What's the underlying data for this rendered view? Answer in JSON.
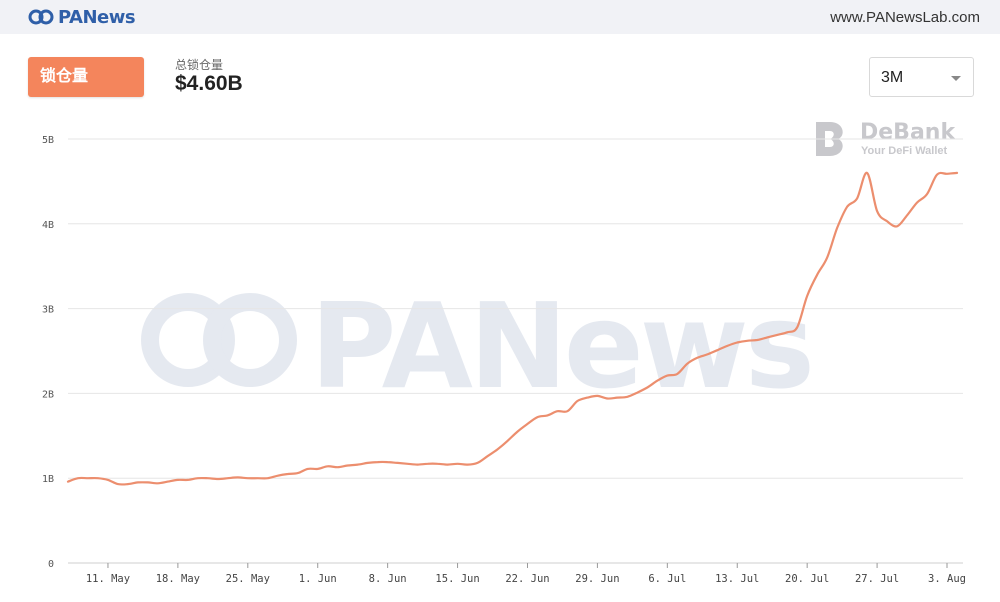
{
  "header": {
    "logo_text": "PANews",
    "site_url": "www.PANewsLab.com"
  },
  "metric": {
    "tab_label": "锁仓量",
    "summary_label": "总锁仓量",
    "summary_value": "$4.60B"
  },
  "range_select": {
    "selected": "3M"
  },
  "debank_logo": {
    "name": "DeBank",
    "tagline": "Your DeFi Wallet"
  },
  "watermark_text": "PANews",
  "colors": {
    "accent": "#f4855c",
    "line": "#ec8e6e",
    "grid": "#e6e6e6",
    "topbar": "#f1f2f6"
  },
  "chart_data": {
    "type": "line",
    "title": "",
    "xlabel": "",
    "ylabel": "",
    "ylim": [
      0,
      5
    ],
    "y_ticks": [
      "0",
      "1B",
      "2B",
      "3B",
      "4B",
      "5B"
    ],
    "x_ticks": [
      "11. May",
      "18. May",
      "25. May",
      "1. Jun",
      "8. Jun",
      "15. Jun",
      "22. Jun",
      "29. Jun",
      "6. Jul",
      "13. Jul",
      "20. Jul",
      "27. Jul",
      "3. Aug"
    ],
    "x_tick_days": [
      4,
      11,
      18,
      25,
      32,
      39,
      46,
      53,
      60,
      67,
      74,
      81,
      88
    ],
    "start_date": "2020-05-07",
    "grid": true,
    "legend": "none",
    "series": [
      {
        "values": [
          [
            0,
            0.96
          ],
          [
            1,
            1.0
          ],
          [
            2,
            1.0
          ],
          [
            3,
            1.0
          ],
          [
            4,
            0.98
          ],
          [
            5,
            0.93
          ],
          [
            6,
            0.93
          ],
          [
            7,
            0.95
          ],
          [
            8,
            0.95
          ],
          [
            9,
            0.94
          ],
          [
            10,
            0.96
          ],
          [
            11,
            0.98
          ],
          [
            12,
            0.98
          ],
          [
            13,
            1.0
          ],
          [
            14,
            1.0
          ],
          [
            15,
            0.99
          ],
          [
            16,
            1.0
          ],
          [
            17,
            1.01
          ],
          [
            18,
            1.0
          ],
          [
            19,
            1.0
          ],
          [
            20,
            1.0
          ],
          [
            21,
            1.03
          ],
          [
            22,
            1.05
          ],
          [
            23,
            1.06
          ],
          [
            24,
            1.11
          ],
          [
            25,
            1.11
          ],
          [
            26,
            1.14
          ],
          [
            27,
            1.13
          ],
          [
            28,
            1.15
          ],
          [
            29,
            1.16
          ],
          [
            30,
            1.18
          ],
          [
            31,
            1.19
          ],
          [
            32,
            1.19
          ],
          [
            33,
            1.18
          ],
          [
            34,
            1.17
          ],
          [
            35,
            1.16
          ],
          [
            36,
            1.17
          ],
          [
            37,
            1.17
          ],
          [
            38,
            1.16
          ],
          [
            39,
            1.17
          ],
          [
            40,
            1.16
          ],
          [
            41,
            1.18
          ],
          [
            42,
            1.26
          ],
          [
            43,
            1.34
          ],
          [
            44,
            1.44
          ],
          [
            45,
            1.55
          ],
          [
            46,
            1.64
          ],
          [
            47,
            1.72
          ],
          [
            48,
            1.74
          ],
          [
            49,
            1.79
          ],
          [
            50,
            1.79
          ],
          [
            51,
            1.91
          ],
          [
            52,
            1.95
          ],
          [
            53,
            1.97
          ],
          [
            54,
            1.94
          ],
          [
            55,
            1.95
          ],
          [
            56,
            1.96
          ],
          [
            57,
            2.01
          ],
          [
            58,
            2.07
          ],
          [
            59,
            2.15
          ],
          [
            60,
            2.21
          ],
          [
            61,
            2.23
          ],
          [
            62,
            2.35
          ],
          [
            63,
            2.42
          ],
          [
            64,
            2.46
          ],
          [
            65,
            2.51
          ],
          [
            66,
            2.56
          ],
          [
            67,
            2.6
          ],
          [
            68,
            2.62
          ],
          [
            69,
            2.63
          ],
          [
            70,
            2.66
          ],
          [
            71,
            2.69
          ],
          [
            72,
            2.72
          ],
          [
            73,
            2.78
          ],
          [
            74,
            3.15
          ],
          [
            75,
            3.4
          ],
          [
            76,
            3.6
          ],
          [
            77,
            3.95
          ],
          [
            78,
            4.2
          ],
          [
            79,
            4.3
          ],
          [
            80,
            4.6
          ],
          [
            81,
            4.15
          ],
          [
            82,
            4.03
          ],
          [
            83,
            3.97
          ],
          [
            84,
            4.1
          ],
          [
            85,
            4.25
          ],
          [
            86,
            4.35
          ],
          [
            87,
            4.58
          ],
          [
            88,
            4.59
          ],
          [
            89,
            4.6
          ]
        ]
      }
    ]
  }
}
